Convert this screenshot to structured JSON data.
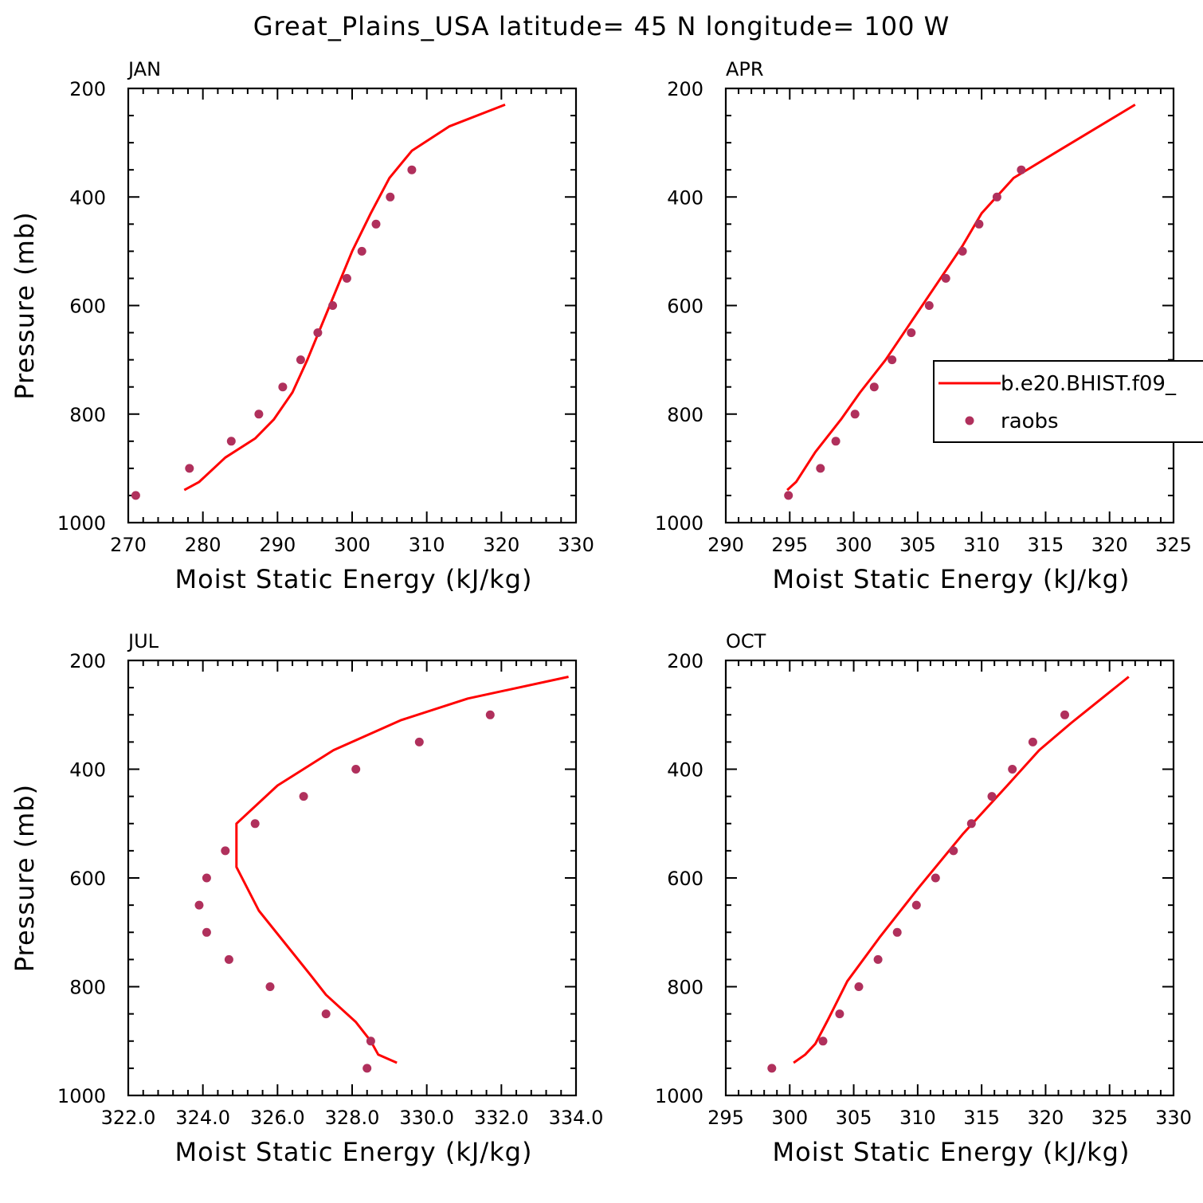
{
  "figure": {
    "title": "Great_Plains_USA  latitude= 45 N longitude= 100 W",
    "colors": {
      "model": "#ff0000",
      "obs": "#b0305c",
      "axes": "#000000"
    }
  },
  "chart_data": [
    {
      "type": "line",
      "panel": "JAN",
      "xlabel": "Moist Static Energy (kJ/kg)",
      "ylabel": "Pressure (mb)",
      "xlim": [
        270,
        330
      ],
      "ylim": [
        1000,
        200
      ],
      "xticks": [
        270,
        280,
        290,
        300,
        310,
        320,
        330
      ],
      "xtick_labels": [
        "270",
        "280",
        "290",
        "300",
        "310",
        "320",
        "330"
      ],
      "yticks": [
        200,
        400,
        600,
        800,
        1000
      ],
      "ytick_labels": [
        "200",
        "400",
        "600",
        "800",
        "1000"
      ],
      "grid": false,
      "series": [
        {
          "name": "b.e20.BHIST.f09_",
          "style": "line",
          "x": [
            277.5,
            279.5,
            283.0,
            287.0,
            289.5,
            292.0,
            294.0,
            297.0,
            300.0,
            302.5,
            305.0,
            308.0,
            313.0,
            320.5
          ],
          "y": [
            940,
            925,
            880,
            845,
            810,
            760,
            700,
            600,
            500,
            430,
            365,
            315,
            270,
            230
          ]
        },
        {
          "name": "raobs",
          "style": "markers",
          "x": [
            271.0,
            278.2,
            283.8,
            287.5,
            290.7,
            293.1,
            295.4,
            297.4,
            299.3,
            301.3,
            303.2,
            305.1,
            308.0
          ],
          "y": [
            950,
            900,
            850,
            800,
            750,
            700,
            650,
            600,
            550,
            500,
            450,
            400,
            350
          ]
        }
      ]
    },
    {
      "type": "line",
      "panel": "APR",
      "xlabel": "Moist Static Energy (kJ/kg)",
      "ylabel": "",
      "xlim": [
        290,
        325
      ],
      "ylim": [
        1000,
        200
      ],
      "xticks": [
        290,
        295,
        300,
        305,
        310,
        315,
        320,
        325
      ],
      "xtick_labels": [
        "290",
        "295",
        "300",
        "305",
        "310",
        "315",
        "320",
        "325"
      ],
      "yticks": [
        200,
        400,
        600,
        800,
        1000
      ],
      "ytick_labels": [
        "200",
        "400",
        "600",
        "800",
        "1000"
      ],
      "grid": false,
      "legend": {
        "position": "right",
        "entries": [
          "b.e20.BHIST.f09_",
          "raobs"
        ]
      },
      "series": [
        {
          "name": "b.e20.BHIST.f09_",
          "style": "line",
          "x": [
            294.8,
            295.5,
            297.0,
            299.0,
            300.5,
            302.5,
            304.5,
            306.5,
            308.5,
            310.0,
            312.5,
            316.0,
            322.0
          ],
          "y": [
            940,
            925,
            870,
            810,
            760,
            700,
            630,
            560,
            490,
            430,
            365,
            315,
            230
          ]
        },
        {
          "name": "raobs",
          "style": "markers",
          "x": [
            294.9,
            297.4,
            298.6,
            300.1,
            301.6,
            303.0,
            304.5,
            305.9,
            307.2,
            308.5,
            309.8,
            311.2,
            313.1
          ],
          "y": [
            950,
            900,
            850,
            800,
            750,
            700,
            650,
            600,
            550,
            500,
            450,
            400,
            350
          ]
        }
      ]
    },
    {
      "type": "line",
      "panel": "JUL",
      "xlabel": "Moist Static Energy (kJ/kg)",
      "ylabel": "Pressure (mb)",
      "xlim": [
        322.0,
        334.0
      ],
      "ylim": [
        1000,
        200
      ],
      "xticks": [
        322,
        324,
        326,
        328,
        330,
        332,
        334
      ],
      "xtick_labels": [
        "322.0",
        "324.0",
        "326.0",
        "328.0",
        "330.0",
        "332.0",
        "334.0"
      ],
      "yticks": [
        200,
        400,
        600,
        800,
        1000
      ],
      "ytick_labels": [
        "200",
        "400",
        "600",
        "800",
        "1000"
      ],
      "grid": false,
      "series": [
        {
          "name": "b.e20.BHIST.f09_",
          "style": "line",
          "x": [
            329.2,
            328.7,
            328.5,
            328.1,
            327.3,
            326.9,
            325.5,
            324.9,
            324.9,
            326.0,
            327.5,
            329.3,
            331.1,
            333.8
          ],
          "y": [
            940,
            925,
            900,
            865,
            815,
            780,
            660,
            580,
            500,
            430,
            365,
            310,
            270,
            230
          ]
        },
        {
          "name": "raobs",
          "style": "markers",
          "x": [
            328.4,
            328.5,
            327.3,
            325.8,
            324.7,
            324.1,
            323.9,
            324.1,
            324.6,
            325.4,
            326.7,
            328.1,
            329.8,
            331.7
          ],
          "y": [
            950,
            900,
            850,
            800,
            750,
            700,
            650,
            600,
            550,
            500,
            450,
            400,
            350,
            300
          ]
        }
      ]
    },
    {
      "type": "line",
      "panel": "OCT",
      "xlabel": "Moist Static Energy (kJ/kg)",
      "ylabel": "",
      "xlim": [
        295,
        330
      ],
      "ylim": [
        1000,
        200
      ],
      "xticks": [
        295,
        300,
        305,
        310,
        315,
        320,
        325,
        330
      ],
      "xtick_labels": [
        "295",
        "300",
        "305",
        "310",
        "315",
        "320",
        "325",
        "330"
      ],
      "yticks": [
        200,
        400,
        600,
        800,
        1000
      ],
      "ytick_labels": [
        "200",
        "400",
        "600",
        "800",
        "1000"
      ],
      "grid": false,
      "series": [
        {
          "name": "b.e20.BHIST.f09_",
          "style": "line",
          "x": [
            300.3,
            301.2,
            302.0,
            303.0,
            304.5,
            307.0,
            310.0,
            313.5,
            317.0,
            319.5,
            322.0,
            326.5
          ],
          "y": [
            940,
            925,
            905,
            860,
            790,
            710,
            620,
            520,
            430,
            365,
            315,
            230
          ]
        },
        {
          "name": "raobs",
          "style": "markers",
          "x": [
            298.6,
            302.6,
            303.9,
            305.4,
            306.9,
            308.4,
            309.9,
            311.4,
            312.8,
            314.2,
            315.8,
            317.4,
            319.0,
            321.5
          ],
          "y": [
            950,
            900,
            850,
            800,
            750,
            700,
            650,
            600,
            550,
            500,
            450,
            400,
            350,
            300
          ]
        }
      ]
    }
  ]
}
